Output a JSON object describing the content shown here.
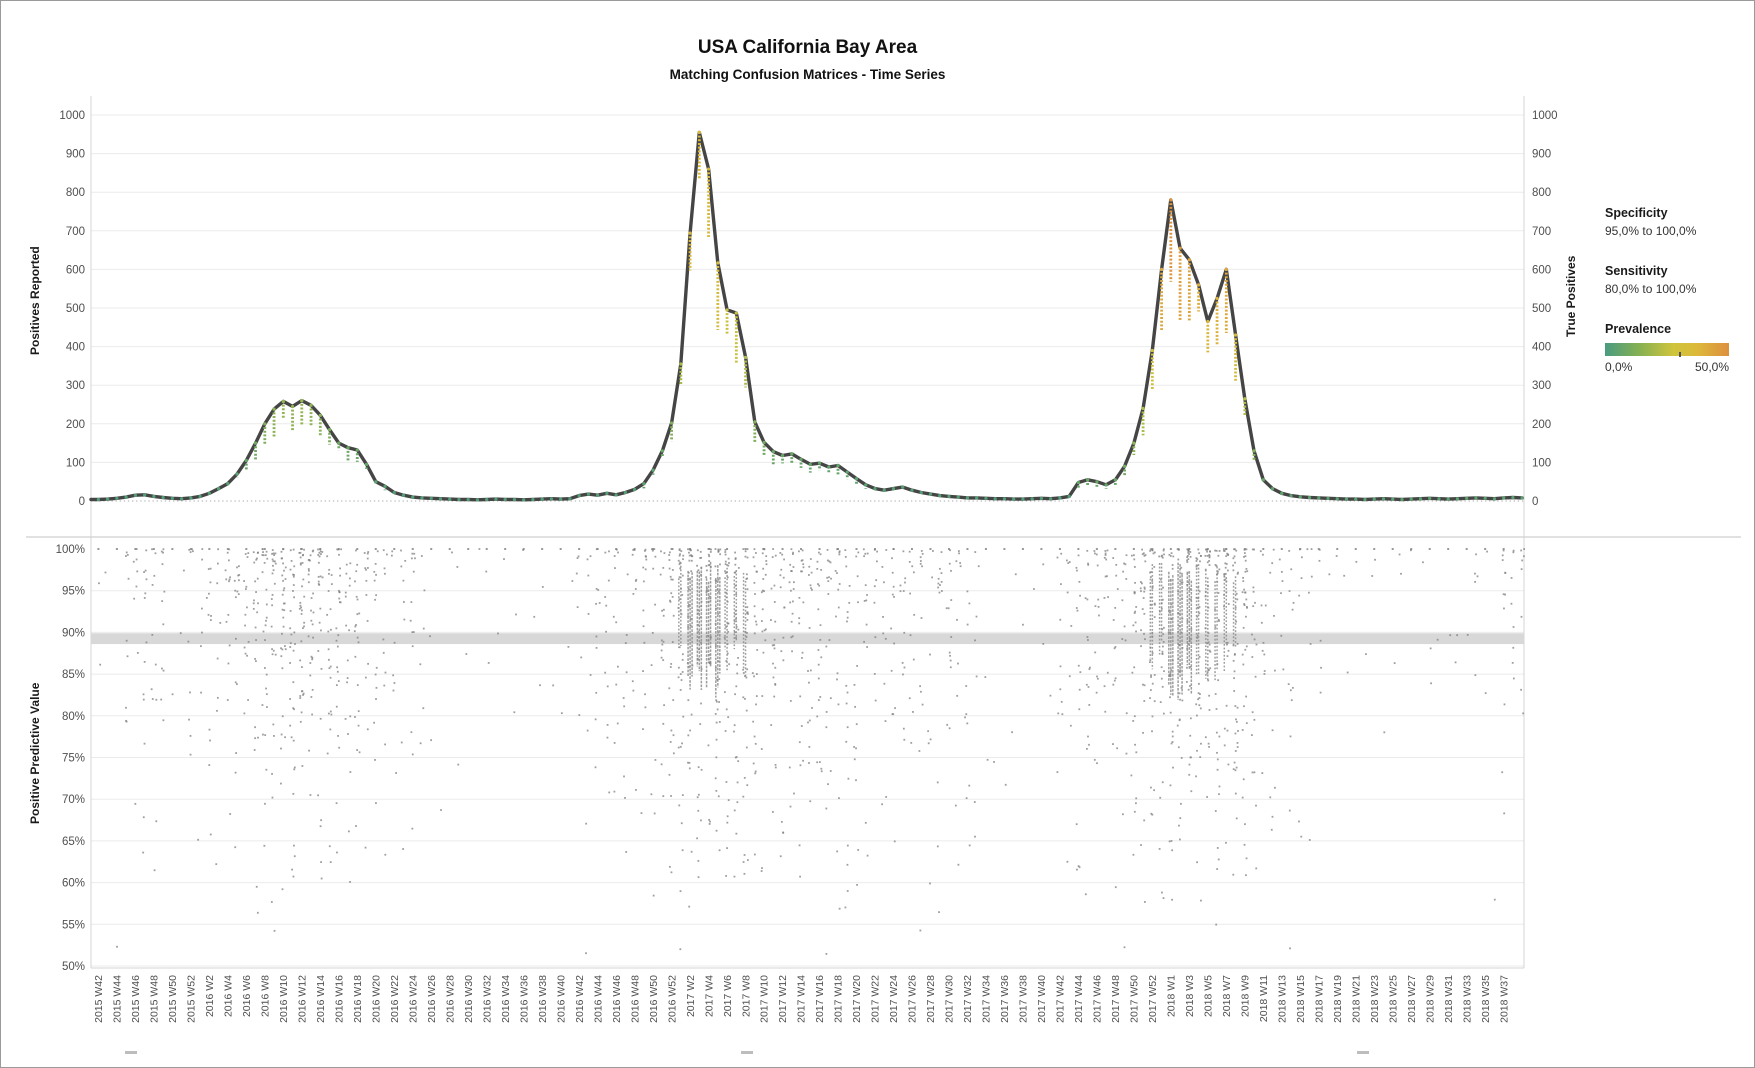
{
  "title": "USA California Bay Area",
  "subtitle": "Matching Confusion Matrices - Time Series",
  "axes": {
    "left_top_title": "Positives Reported",
    "left_bottom_title": "Positive Predictive Value",
    "right_top_title": "True Positives"
  },
  "legend": {
    "specificity": {
      "label": "Specificity",
      "value": "95,0% to 100,0%"
    },
    "sensitivity": {
      "label": "Sensitivity",
      "value": "80,0% to 100,0%"
    },
    "prevalence": {
      "label": "Prevalence",
      "min": "0,0%",
      "max": "50,0%"
    }
  },
  "chart_data": [
    {
      "type": "line",
      "panel": "top",
      "title": "Positives Reported (line) with per-week drop whiskers colored by prevalence",
      "ylabel": "Positives Reported",
      "ylabel_right": "True Positives",
      "ylim": [
        0,
        1000
      ],
      "y_ticks": [
        0,
        100,
        200,
        300,
        400,
        500,
        600,
        700,
        800,
        900,
        1000
      ],
      "grid": true,
      "line_color": "#454545",
      "x_tick_labels": [
        "2015 W42",
        "2015 W44",
        "2015 W46",
        "2015 W48",
        "2015 W50",
        "2015 W52",
        "2016 W2",
        "2016 W4",
        "2016 W6",
        "2016 W8",
        "2016 W10",
        "2016 W12",
        "2016 W14",
        "2016 W16",
        "2016 W18",
        "2016 W20",
        "2016 W22",
        "2016 W24",
        "2016 W26",
        "2016 W28",
        "2016 W30",
        "2016 W32",
        "2016 W34",
        "2016 W36",
        "2016 W38",
        "2016 W40",
        "2016 W42",
        "2016 W44",
        "2016 W46",
        "2016 W48",
        "2016 W50",
        "2016 W52",
        "2017 W2",
        "2017 W4",
        "2017 W6",
        "2017 W8",
        "2017 W10",
        "2017 W12",
        "2017 W14",
        "2017 W16",
        "2017 W18",
        "2017 W20",
        "2017 W22",
        "2017 W24",
        "2017 W26",
        "2017 W28",
        "2017 W30",
        "2017 W32",
        "2017 W34",
        "2017 W36",
        "2017 W38",
        "2017 W40",
        "2017 W42",
        "2017 W44",
        "2017 W46",
        "2017 W48",
        "2017 W50",
        "2017 W52",
        "2018 W1",
        "2018 W3",
        "2018 W5",
        "2018 W7",
        "2018 W9",
        "2018 W11",
        "2018 W13",
        "2018 W15",
        "2018 W17",
        "2018 W19",
        "2018 W21",
        "2018 W23",
        "2018 W25",
        "2018 W27",
        "2018 W29",
        "2018 W31",
        "2018 W33",
        "2018 W35",
        "2018 W37"
      ],
      "weekly_values": [
        4,
        5,
        7,
        10,
        15,
        16,
        12,
        9,
        7,
        6,
        8,
        12,
        20,
        32,
        45,
        70,
        105,
        150,
        200,
        238,
        258,
        245,
        260,
        248,
        222,
        185,
        150,
        138,
        132,
        95,
        50,
        38,
        22,
        15,
        10,
        8,
        7,
        6,
        5,
        4,
        4,
        3,
        4,
        5,
        4,
        4,
        3,
        4,
        5,
        6,
        5,
        6,
        14,
        18,
        15,
        20,
        16,
        22,
        30,
        45,
        80,
        130,
        202,
        355,
        694,
        955,
        860,
        617,
        495,
        487,
        372,
        205,
        152,
        128,
        118,
        122,
        108,
        95,
        98,
        88,
        92,
        75,
        58,
        42,
        32,
        28,
        32,
        36,
        28,
        22,
        18,
        14,
        12,
        10,
        8,
        8,
        7,
        6,
        6,
        5,
        5,
        6,
        7,
        6,
        8,
        12,
        48,
        55,
        50,
        42,
        55,
        90,
        150,
        240,
        390,
        600,
        780,
        655,
        625,
        560,
        465,
        525,
        600,
        430,
        265,
        130,
        55,
        32,
        20,
        14,
        11,
        9,
        8,
        7,
        6,
        5,
        5,
        4,
        5,
        6,
        5,
        4,
        5,
        6,
        7,
        6,
        5,
        6,
        7,
        8,
        7,
        6,
        8,
        9,
        8
      ],
      "prevalence_model": {
        "max_pct_early": 32,
        "max_pct_late": 48,
        "base_early": 2,
        "per_value_early": 0.045,
        "base_late": 4,
        "per_value_late": 0.06,
        "late_start_index": 106
      },
      "prevalence_color_stops": [
        [
          0,
          "#4a9b80"
        ],
        [
          8,
          "#6aa765"
        ],
        [
          15,
          "#9db84d"
        ],
        [
          25,
          "#ccc23c"
        ],
        [
          35,
          "#dcb43a"
        ],
        [
          50,
          "#dd8f3f"
        ]
      ]
    },
    {
      "type": "scatter",
      "panel": "bottom",
      "ylabel": "Positive Predictive Value",
      "ylim": [
        50,
        100
      ],
      "y_tick_labels": [
        "100%",
        "95%",
        "90%",
        "85%",
        "80%",
        "75%",
        "70%",
        "65%",
        "60%",
        "55%",
        "50%"
      ],
      "grid": true,
      "dot_color": "#7f7f7f",
      "top_row_pct": 100,
      "threshold_band_pct": [
        88.6,
        89.9
      ],
      "band_color": "#d8d8d8",
      "density_source": "weekly_values of top panel (PPV spread widens and densifies around epidemic peaks)"
    }
  ]
}
